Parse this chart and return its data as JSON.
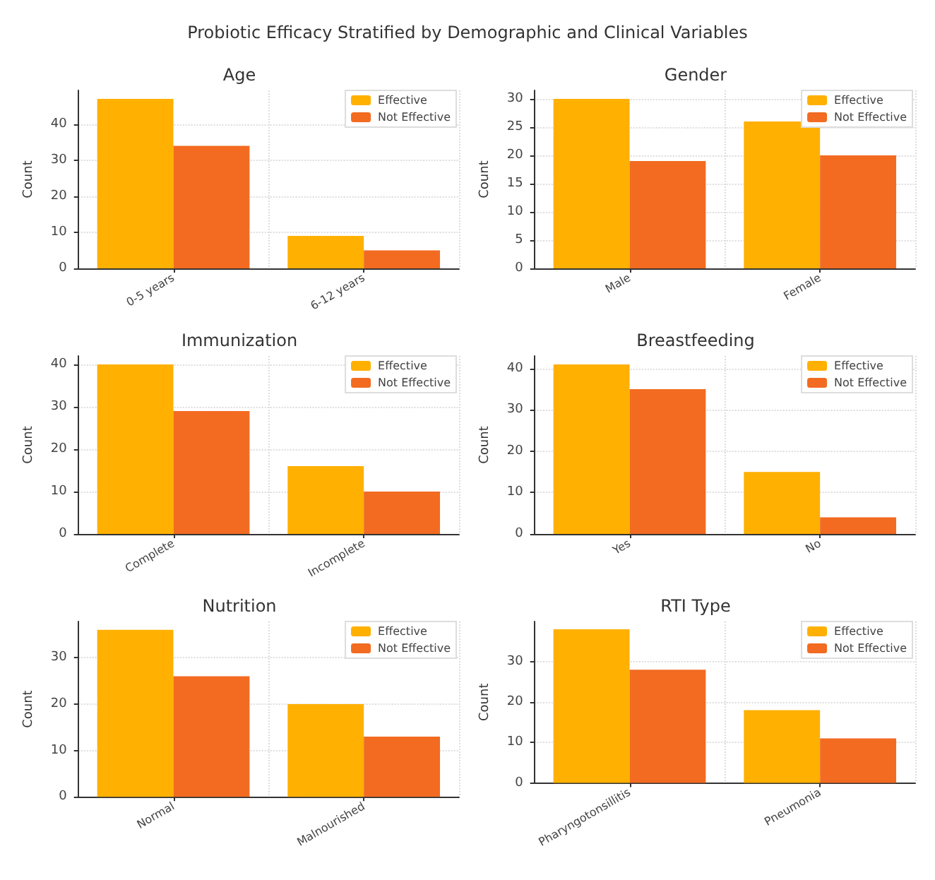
{
  "chart_data": [
    {
      "type": "other",
      "title": "Probiotic Efficacy Stratified by Demographic and Clinical Variables"
    },
    {
      "type": "bar",
      "title": "Age",
      "ylabel": "Count",
      "categories": [
        "0-5 years",
        "6-12 years"
      ],
      "series": [
        {
          "name": "Effective",
          "color": "#ffb000",
          "values": [
            47,
            9
          ]
        },
        {
          "name": "Not Effective",
          "color": "#f26b21",
          "values": [
            34,
            5
          ]
        }
      ],
      "ylim": [
        0,
        49.35
      ],
      "yticks": [
        0,
        10,
        20,
        30,
        40
      ],
      "grid": true,
      "legend": "top right"
    },
    {
      "type": "bar",
      "title": "Gender",
      "ylabel": "Count",
      "categories": [
        "Male",
        "Female"
      ],
      "series": [
        {
          "name": "Effective",
          "color": "#ffb000",
          "values": [
            30,
            26
          ]
        },
        {
          "name": "Not Effective",
          "color": "#f26b21",
          "values": [
            19,
            20
          ]
        }
      ],
      "ylim": [
        0,
        31.5
      ],
      "yticks": [
        0,
        5,
        10,
        15,
        20,
        25,
        30
      ],
      "grid": true,
      "legend": "top right"
    },
    {
      "type": "bar",
      "title": "Immunization",
      "ylabel": "Count",
      "categories": [
        "Complete",
        "Incomplete"
      ],
      "series": [
        {
          "name": "Effective",
          "color": "#ffb000",
          "values": [
            40,
            16
          ]
        },
        {
          "name": "Not Effective",
          "color": "#f26b21",
          "values": [
            29,
            10
          ]
        }
      ],
      "ylim": [
        0,
        42
      ],
      "yticks": [
        0,
        10,
        20,
        30,
        40
      ],
      "grid": true,
      "legend": "top right"
    },
    {
      "type": "bar",
      "title": "Breastfeeding",
      "ylabel": "Count",
      "categories": [
        "Yes",
        "No"
      ],
      "series": [
        {
          "name": "Effective",
          "color": "#ffb000",
          "values": [
            41,
            15
          ]
        },
        {
          "name": "Not Effective",
          "color": "#f26b21",
          "values": [
            35,
            4
          ]
        }
      ],
      "ylim": [
        0,
        43.05
      ],
      "yticks": [
        0,
        10,
        20,
        30,
        40
      ],
      "grid": true,
      "legend": "top right"
    },
    {
      "type": "bar",
      "title": "Nutrition",
      "ylabel": "Count",
      "categories": [
        "Normal",
        "Malnourished"
      ],
      "series": [
        {
          "name": "Effective",
          "color": "#ffb000",
          "values": [
            36,
            20
          ]
        },
        {
          "name": "Not Effective",
          "color": "#f26b21",
          "values": [
            26,
            13
          ]
        }
      ],
      "ylim": [
        0,
        37.8
      ],
      "yticks": [
        0,
        10,
        20,
        30
      ],
      "grid": true,
      "legend": "top right"
    },
    {
      "type": "bar",
      "title": "RTI Type",
      "ylabel": "Count",
      "categories": [
        "Pharyngotonsillitis",
        "Pneumonia"
      ],
      "series": [
        {
          "name": "Effective",
          "color": "#ffb000",
          "values": [
            38,
            18
          ]
        },
        {
          "name": "Not Effective",
          "color": "#f26b21",
          "values": [
            28,
            11
          ]
        }
      ],
      "ylim": [
        0,
        39.9
      ],
      "yticks": [
        0,
        10,
        20,
        30
      ],
      "grid": true,
      "legend": "top right"
    }
  ]
}
